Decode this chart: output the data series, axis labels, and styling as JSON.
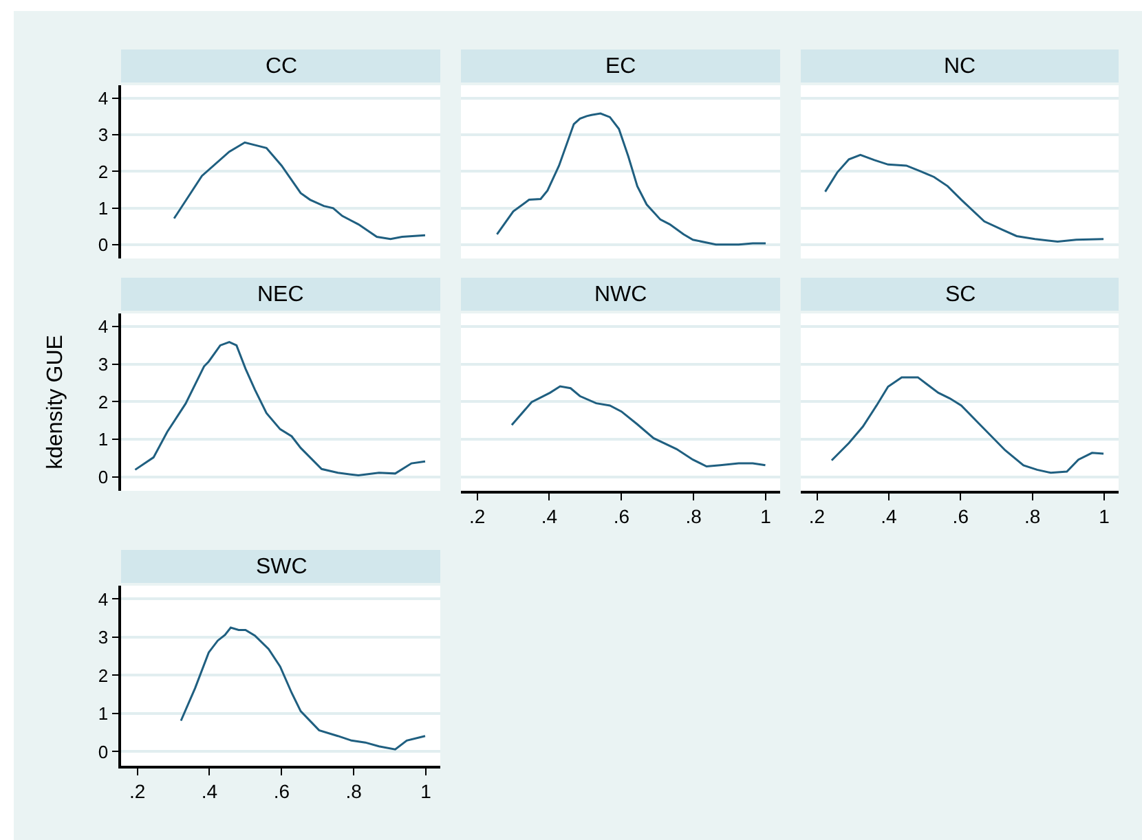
{
  "chart_data": [
    {
      "type": "line",
      "title": "CC",
      "color": "#1f5f80",
      "grid": "y",
      "tick_labels": "y",
      "xlim": [
        0.155,
        1.04
      ],
      "ylim": [
        -0.37,
        4.35
      ],
      "yticks": [
        0,
        1,
        2,
        3,
        4
      ],
      "x": [
        0.302,
        0.379,
        0.455,
        0.498,
        0.538,
        0.558,
        0.6,
        0.653,
        0.679,
        0.717,
        0.743,
        0.768,
        0.813,
        0.864,
        0.902,
        0.934,
        0.998
      ],
      "values": [
        0.72,
        1.88,
        2.54,
        2.79,
        2.69,
        2.64,
        2.16,
        1.41,
        1.23,
        1.06,
        1.0,
        0.79,
        0.56,
        0.22,
        0.16,
        0.22,
        0.26
      ]
    },
    {
      "type": "line",
      "title": "EC",
      "color": "#1f5f80",
      "grid": "y",
      "tick_labels": false,
      "xlim": [
        0.155,
        1.04
      ],
      "ylim": [
        -0.37,
        4.35
      ],
      "yticks": [
        0,
        1,
        2,
        3,
        4
      ],
      "x": [
        0.255,
        0.3,
        0.344,
        0.376,
        0.395,
        0.427,
        0.468,
        0.485,
        0.504,
        0.517,
        0.542,
        0.568,
        0.593,
        0.619,
        0.644,
        0.67,
        0.708,
        0.734,
        0.772,
        0.798,
        0.862,
        0.925,
        0.964,
        1.0
      ],
      "values": [
        0.29,
        0.91,
        1.23,
        1.25,
        1.48,
        2.16,
        3.29,
        3.44,
        3.51,
        3.54,
        3.58,
        3.48,
        3.16,
        2.41,
        1.6,
        1.1,
        0.69,
        0.56,
        0.29,
        0.14,
        0.01,
        0.01,
        0.04,
        0.04
      ]
    },
    {
      "type": "line",
      "title": "NC",
      "color": "#1f5f80",
      "grid": "y",
      "tick_labels": false,
      "xlim": [
        0.155,
        1.04
      ],
      "ylim": [
        -0.37,
        4.35
      ],
      "yticks": [
        0,
        1,
        2,
        3,
        4
      ],
      "x": [
        0.223,
        0.257,
        0.289,
        0.321,
        0.36,
        0.398,
        0.449,
        0.487,
        0.526,
        0.564,
        0.602,
        0.666,
        0.717,
        0.756,
        0.807,
        0.87,
        0.922,
        0.998
      ],
      "values": [
        1.45,
        1.98,
        2.33,
        2.45,
        2.31,
        2.19,
        2.16,
        2.01,
        1.85,
        1.6,
        1.23,
        0.64,
        0.41,
        0.24,
        0.16,
        0.09,
        0.14,
        0.16
      ]
    },
    {
      "type": "line",
      "title": "NEC",
      "ylabel": "kdensity GUE",
      "color": "#1f5f80",
      "grid": "y",
      "tick_labels": "y",
      "xlim": [
        0.155,
        1.04
      ],
      "ylim": [
        -0.37,
        4.35
      ],
      "yticks": [
        0,
        1,
        2,
        3,
        4
      ],
      "x": [
        0.194,
        0.245,
        0.283,
        0.334,
        0.385,
        0.398,
        0.43,
        0.455,
        0.475,
        0.5,
        0.526,
        0.558,
        0.596,
        0.628,
        0.653,
        0.711,
        0.756,
        0.813,
        0.87,
        0.915,
        0.96,
        0.998
      ],
      "values": [
        0.19,
        0.52,
        1.2,
        1.95,
        2.94,
        3.07,
        3.5,
        3.59,
        3.5,
        2.88,
        2.32,
        1.7,
        1.27,
        1.08,
        0.77,
        0.21,
        0.11,
        0.04,
        0.11,
        0.09,
        0.36,
        0.41
      ]
    },
    {
      "type": "line",
      "title": "NWC",
      "color": "#1f5f80",
      "grid": "y",
      "tick_labels": "x",
      "xlim": [
        0.155,
        1.04
      ],
      "ylim": [
        -0.37,
        4.35
      ],
      "xticks": [
        {
          "value": 0.2,
          "label": ".2"
        },
        {
          "value": 0.4,
          "label": ".4"
        },
        {
          "value": 0.6,
          "label": ".6"
        },
        {
          "value": 0.8,
          "label": ".8"
        },
        1
      ],
      "yticks": [
        0,
        1,
        2,
        3,
        4
      ],
      "x": [
        0.296,
        0.351,
        0.402,
        0.43,
        0.459,
        0.485,
        0.53,
        0.568,
        0.6,
        0.644,
        0.689,
        0.753,
        0.798,
        0.836,
        0.874,
        0.925,
        0.964,
        0.999
      ],
      "values": [
        1.38,
        1.99,
        2.24,
        2.41,
        2.36,
        2.15,
        1.96,
        1.9,
        1.74,
        1.4,
        1.03,
        0.74,
        0.46,
        0.28,
        0.31,
        0.36,
        0.36,
        0.31
      ]
    },
    {
      "type": "line",
      "title": "SC",
      "color": "#1f5f80",
      "grid": "y",
      "tick_labels": "x",
      "xlim": [
        0.155,
        1.04
      ],
      "ylim": [
        -0.37,
        4.35
      ],
      "xticks": [
        {
          "value": 0.2,
          "label": ".2"
        },
        {
          "value": 0.4,
          "label": ".4"
        },
        {
          "value": 0.6,
          "label": ".6"
        },
        {
          "value": 0.8,
          "label": ".8"
        },
        1
      ],
      "yticks": [
        0,
        1,
        2,
        3,
        4
      ],
      "x": [
        0.241,
        0.289,
        0.328,
        0.366,
        0.398,
        0.436,
        0.481,
        0.507,
        0.538,
        0.57,
        0.602,
        0.647,
        0.724,
        0.775,
        0.813,
        0.851,
        0.896,
        0.928,
        0.966,
        0.998
      ],
      "values": [
        0.44,
        0.9,
        1.34,
        1.9,
        2.4,
        2.65,
        2.65,
        2.46,
        2.24,
        2.09,
        1.9,
        1.46,
        0.71,
        0.31,
        0.19,
        0.11,
        0.14,
        0.46,
        0.64,
        0.62
      ]
    },
    {
      "type": "line",
      "title": "SWC",
      "color": "#1f5f80",
      "grid": "y",
      "xlim": [
        0.155,
        1.04
      ],
      "ylim": [
        -0.37,
        4.35
      ],
      "xticks": [
        {
          "value": 0.2,
          "label": ".2"
        },
        {
          "value": 0.4,
          "label": ".4"
        },
        {
          "value": 0.6,
          "label": ".6"
        },
        {
          "value": 0.8,
          "label": ".8"
        },
        1
      ],
      "yticks": [
        0,
        1,
        2,
        3,
        4
      ],
      "x": [
        0.321,
        0.36,
        0.398,
        0.423,
        0.443,
        0.459,
        0.481,
        0.5,
        0.526,
        0.564,
        0.596,
        0.628,
        0.653,
        0.704,
        0.756,
        0.794,
        0.832,
        0.87,
        0.915,
        0.947,
        0.998
      ],
      "values": [
        0.81,
        1.66,
        2.6,
        2.91,
        3.06,
        3.25,
        3.19,
        3.19,
        3.04,
        2.69,
        2.23,
        1.54,
        1.06,
        0.56,
        0.41,
        0.29,
        0.24,
        0.14,
        0.06,
        0.29,
        0.41
      ]
    }
  ]
}
